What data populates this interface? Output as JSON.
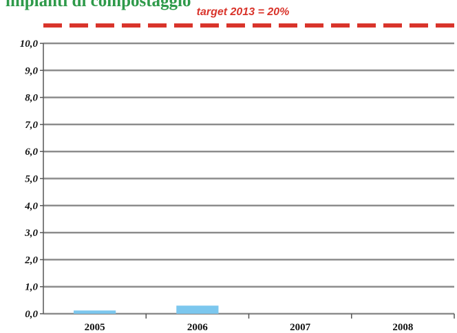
{
  "chart_data": {
    "type": "bar",
    "title": "impianti di compostaggio",
    "categories": [
      "2005",
      "2006",
      "2007",
      "2008"
    ],
    "series": [
      {
        "values": [
          0.12,
          0.3,
          0,
          0
        ]
      }
    ],
    "ylim": [
      0,
      10
    ],
    "yticks": [
      "0,0",
      "1,0",
      "2,0",
      "3,0",
      "4,0",
      "5,0",
      "6,0",
      "7,0",
      "8,0",
      "9,0",
      "10,0"
    ],
    "grid": true,
    "xlabel": "",
    "ylabel": "",
    "annotations": [
      {
        "text": "target 2013 = 20%",
        "style": "dashed reference line above plot"
      }
    ]
  },
  "colors": {
    "title": "#2e9a4a",
    "bar": "#7cc7ee",
    "grid": "#8c8c8c",
    "target": "#d9342b"
  }
}
